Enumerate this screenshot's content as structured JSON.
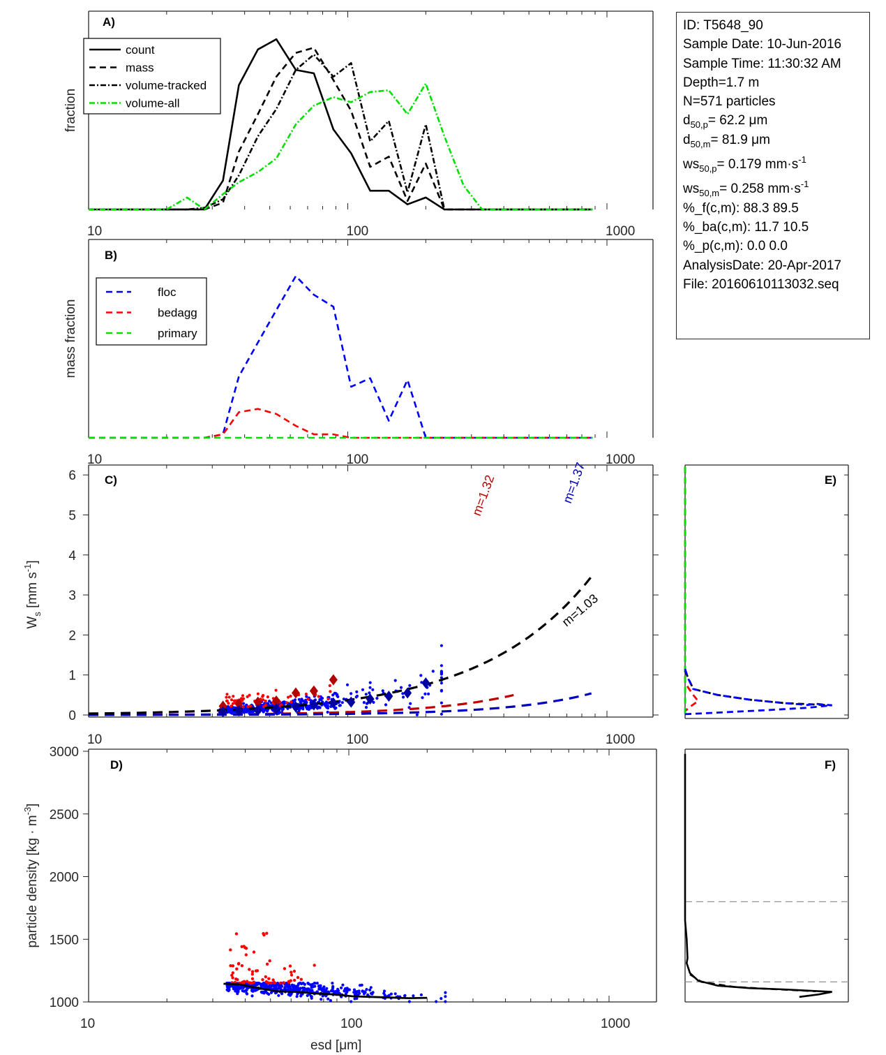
{
  "info_box": {
    "lines": [
      {
        "text": "ID: T5648_90"
      },
      {
        "text": "Sample Date: 10-Jun-2016"
      },
      {
        "text": "Sample Time: 11:30:32 AM"
      },
      {
        "text": "Depth=1.7 m"
      },
      {
        "text": "N=571 particles"
      },
      {
        "pre": "d",
        "sub": "50,p",
        "post": "=  62.2 μm"
      },
      {
        "pre": "d",
        "sub": "50,m",
        "post": "=  81.9 μm"
      },
      {
        "pre": "ws",
        "sub": "50,p",
        "post": "= 0.179 mm·s",
        "sup": "-1"
      },
      {
        "pre": "ws",
        "sub": "50,m",
        "post": "= 0.258 mm·s",
        "sup": "-1"
      },
      {
        "text": "%_f(c,m): 88.3 89.5"
      },
      {
        "text": "%_ba(c,m): 11.7 10.5"
      },
      {
        "text": "%_p(c,m): 0.0 0.0"
      },
      {
        "text": "AnalysisDate: 20-Apr-2017"
      },
      {
        "text": "File: 20160610113032.seq"
      }
    ]
  },
  "chart_data": [
    {
      "panel": "A)",
      "type": "line",
      "xscale": "log",
      "xlim": [
        10,
        1500
      ],
      "ylim": [
        0,
        1.05
      ],
      "ylabel": "fraction",
      "xticklabels": [
        "10",
        "100",
        "1000"
      ],
      "xticks": [
        10,
        100,
        1000
      ],
      "legend": {
        "placement": "top-left",
        "entries": [
          "count",
          "mass",
          "volume-tracked",
          "volume-all"
        ]
      },
      "series": [
        {
          "name": "count",
          "color": "#000000",
          "style": "solid",
          "x": [
            10,
            12,
            14,
            17,
            20,
            24,
            28,
            33,
            38,
            45,
            53,
            63,
            74,
            88,
            103,
            122,
            144,
            170,
            200,
            236,
            280,
            330,
            390,
            460,
            540,
            640,
            750,
            880
          ],
          "y": [
            0,
            0,
            0,
            0,
            0,
            0,
            0,
            0.17,
            0.73,
            0.94,
            1.0,
            0.82,
            0.8,
            0.47,
            0.33,
            0.11,
            0.11,
            0.03,
            0.07,
            0.0,
            0,
            0,
            0,
            0,
            0,
            0,
            0,
            0
          ]
        },
        {
          "name": "mass",
          "color": "#000000",
          "style": "dash",
          "x": [
            10,
            12,
            14,
            17,
            20,
            24,
            28,
            33,
            38,
            45,
            53,
            63,
            74,
            88,
            103,
            122,
            144,
            170,
            200,
            236,
            280,
            330,
            390,
            460,
            540,
            640,
            750,
            880
          ],
          "y": [
            0,
            0,
            0,
            0,
            0,
            0,
            0,
            0.04,
            0.34,
            0.56,
            0.78,
            0.92,
            0.95,
            0.76,
            0.58,
            0.25,
            0.31,
            0.05,
            0.27,
            0.0,
            0,
            0,
            0,
            0,
            0,
            0,
            0,
            0
          ]
        },
        {
          "name": "volume-tracked",
          "color": "#000000",
          "style": "dashdot",
          "x": [
            10,
            12,
            14,
            17,
            20,
            24,
            28,
            33,
            38,
            45,
            53,
            63,
            74,
            88,
            103,
            122,
            144,
            170,
            200,
            236,
            280,
            330,
            390,
            460,
            540,
            640,
            750,
            880
          ],
          "y": [
            0,
            0,
            0,
            0,
            0,
            0,
            0.01,
            0.06,
            0.2,
            0.43,
            0.59,
            0.82,
            0.91,
            0.78,
            0.86,
            0.4,
            0.52,
            0.1,
            0.5,
            0.0,
            0,
            0,
            0,
            0,
            0,
            0,
            0,
            0
          ]
        },
        {
          "name": "volume-all",
          "color": "#00e000",
          "style": "dashdot",
          "x": [
            10,
            12,
            14,
            17,
            20,
            24,
            28,
            33,
            38,
            45,
            53,
            63,
            74,
            88,
            103,
            122,
            144,
            170,
            200,
            236,
            280,
            330,
            390,
            460,
            540,
            640,
            750,
            880
          ],
          "y": [
            0,
            0,
            0,
            0,
            0,
            0.07,
            0.0,
            0.09,
            0.16,
            0.22,
            0.3,
            0.5,
            0.61,
            0.66,
            0.63,
            0.69,
            0.7,
            0.56,
            0.74,
            0.43,
            0.14,
            0,
            0,
            0,
            0,
            0,
            0,
            0
          ]
        }
      ]
    },
    {
      "panel": "B)",
      "type": "line",
      "xscale": "log",
      "xlim": [
        10,
        1500
      ],
      "ylim": [
        0,
        1.05
      ],
      "ylabel": "mass fraction",
      "xticklabels": [
        "10",
        "100",
        "1000"
      ],
      "xticks": [
        10,
        100,
        1000
      ],
      "legend": {
        "placement": "top-left",
        "entries": [
          "floc",
          "bedagg",
          "primary"
        ]
      },
      "series": [
        {
          "name": "floc",
          "color": "#0000ff",
          "style": "dash",
          "x": [
            10,
            12,
            14,
            17,
            20,
            24,
            28,
            33,
            38,
            45,
            53,
            63,
            74,
            88,
            103,
            122,
            144,
            170,
            200,
            236,
            280,
            330,
            390,
            460,
            540,
            640,
            750,
            880
          ],
          "y": [
            0,
            0,
            0,
            0,
            0,
            0,
            0,
            0.02,
            0.36,
            0.56,
            0.75,
            0.95,
            0.84,
            0.77,
            0.3,
            0.35,
            0.1,
            0.34,
            0.0,
            0,
            0,
            0,
            0,
            0,
            0,
            0,
            0,
            0
          ]
        },
        {
          "name": "bedagg",
          "color": "#ff0000",
          "style": "dash",
          "x": [
            10,
            12,
            14,
            17,
            20,
            24,
            28,
            33,
            38,
            45,
            53,
            63,
            74,
            88,
            103,
            122,
            144,
            170,
            200,
            236,
            280,
            330,
            390,
            460,
            540,
            640,
            750,
            880
          ],
          "y": [
            0,
            0,
            0,
            0,
            0,
            0,
            0,
            0.02,
            0.15,
            0.17,
            0.14,
            0.07,
            0.02,
            0.02,
            0,
            0,
            0,
            0,
            0,
            0,
            0,
            0,
            0,
            0,
            0,
            0,
            0,
            0
          ]
        },
        {
          "name": "primary",
          "color": "#00e000",
          "style": "dash",
          "x": [
            10,
            880
          ],
          "y": [
            0,
            0
          ]
        }
      ]
    },
    {
      "panel": "C)",
      "type": "scatter",
      "xscale": "log",
      "xlim": [
        10,
        1500
      ],
      "ylim": [
        -0.05,
        6.25
      ],
      "ylabel": "W_s [mm s^-1]",
      "yticks": [
        0,
        1,
        2,
        3,
        4,
        5,
        6
      ],
      "xticklabels": [
        "10",
        "100",
        "1000"
      ],
      "xticks": [
        10,
        100,
        1000
      ],
      "fits": [
        {
          "name": "bedagg-fit",
          "label": "m=1.32",
          "color": "#c00000",
          "exponent": 1.32,
          "coef": 0.000163,
          "xmax": 440
        },
        {
          "name": "floc-fit",
          "label": "m=1.37",
          "color": "#0000c0",
          "exponent": 1.37,
          "coef": 5.06e-05,
          "xmax": 880
        },
        {
          "name": "all-fit",
          "label": "m=1.03",
          "color": "#000000",
          "exponent": 1.03,
          "coef": 0.00324,
          "xmax": 880
        }
      ],
      "bin_means": [
        {
          "name": "bedagg-means",
          "color": "#b00000",
          "x": [
            33,
            38,
            45,
            53,
            63,
            74,
            88
          ],
          "y": [
            0.22,
            0.28,
            0.32,
            0.35,
            0.55,
            0.6,
            0.88
          ]
        },
        {
          "name": "floc-means",
          "color": "#0000a0",
          "x": [
            33,
            38,
            45,
            53,
            63,
            74,
            88,
            103,
            122,
            144,
            170,
            200
          ],
          "y": [
            0.08,
            0.1,
            0.12,
            0.15,
            0.2,
            0.25,
            0.3,
            0.32,
            0.4,
            0.47,
            0.55,
            0.8
          ]
        }
      ],
      "scatter_groups": [
        {
          "name": "floc-particles",
          "color": "#0000ff",
          "count": 505,
          "xrange": [
            32,
            230
          ],
          "note": "Ws values 0 to 1.2 mm/s, mostly 0.05-0.6"
        },
        {
          "name": "bedagg-particles",
          "color": "#ff0000",
          "count": 66,
          "xrange": [
            33,
            90
          ],
          "note": "Ws values 0.15 to 0.65 mm/s"
        }
      ]
    },
    {
      "panel": "D)",
      "type": "scatter",
      "xscale": "log",
      "xlim": [
        10,
        1500
      ],
      "ylim": [
        1000,
        3000
      ],
      "xlabel": "esd [μm]",
      "ylabel": "particle density [kg · m^-3]",
      "yticks": [
        1000,
        1500,
        2000,
        2500,
        3000
      ],
      "xticklabels": [
        "10",
        "100",
        "1000"
      ],
      "xticks": [
        10,
        100,
        1000
      ],
      "mean_line": {
        "name": "density-mean",
        "color": "#000000",
        "x": [
          33,
          38,
          45,
          53,
          63,
          74,
          88,
          103,
          122,
          144,
          170,
          200
        ],
        "y": [
          1145,
          1140,
          1110,
          1085,
          1080,
          1068,
          1060,
          1045,
          1040,
          1035,
          1030,
          1033
        ]
      },
      "scatter_groups": [
        {
          "name": "floc-particles",
          "color": "#0000ff",
          "count": 505,
          "xrange": [
            32,
            230
          ],
          "note": "density 1000-1150"
        },
        {
          "name": "bedagg-particles",
          "color": "#ff0000",
          "count": 66,
          "xrange": [
            34,
            90
          ],
          "note": "density 1150-1560"
        }
      ]
    },
    {
      "panel": "E)",
      "type": "line",
      "xlim": [
        0,
        1
      ],
      "ylim": [
        -0.05,
        6.25
      ],
      "series": [
        {
          "name": "bedagg-dist",
          "color": "#ff0000",
          "style": "dash",
          "x": [
            0,
            0,
            0,
            0.05,
            0.08,
            0.03,
            0.0
          ],
          "y": [
            6.2,
            1.0,
            0.8,
            0.5,
            0.35,
            0.2,
            0.1
          ]
        },
        {
          "name": "primary-dist",
          "color": "#00e000",
          "style": "dash",
          "x": [
            0,
            0
          ],
          "y": [
            6.2,
            0.0
          ]
        },
        {
          "name": "all-dist",
          "color": "#000000",
          "style": "dash",
          "x": [
            0.0,
            0.05,
            0.2,
            0.4,
            0.6,
            0.8,
            0.9
          ],
          "y": [
            1.1,
            0.65,
            0.5,
            0.38,
            0.3,
            0.26,
            0.24
          ]
        },
        {
          "name": "floc-dist",
          "color": "#0000ff",
          "style": "dash",
          "x": [
            0.0,
            0.02,
            0.05,
            0.2,
            0.4,
            0.6,
            0.75,
            0.8,
            0.9
          ],
          "y": [
            1.15,
            0.9,
            0.65,
            0.5,
            0.38,
            0.3,
            0.25,
            0.28,
            0.24
          ]
        },
        {
          "name": "floc-dist-lower",
          "color": "#0000ff",
          "style": "dash",
          "x": [
            0.0,
            0.2,
            0.5,
            0.75,
            0.9
          ],
          "y": [
            0.02,
            0.06,
            0.12,
            0.18,
            0.24
          ]
        }
      ]
    },
    {
      "panel": "F)",
      "type": "line",
      "xlim": [
        0,
        1
      ],
      "ylim": [
        1000,
        3000
      ],
      "reference_lines": [
        1800,
        1160
      ],
      "series": [
        {
          "name": "density-dist",
          "color": "#000000",
          "style": "solid",
          "x": [
            0.0,
            0.0,
            0.01,
            0.015,
            0.01,
            0.03,
            0.08,
            0.2,
            0.4,
            0.6,
            0.9,
            0.82,
            0.7
          ],
          "y": [
            2980,
            1650,
            1500,
            1350,
            1310,
            1230,
            1170,
            1130,
            1110,
            1100,
            1080,
            1060,
            1040
          ]
        },
        {
          "name": "density-dist-dashed",
          "color": "#000000",
          "style": "dash",
          "x": [
            0.03,
            0.1,
            0.3,
            0.5,
            0.8
          ],
          "y": [
            1220,
            1160,
            1120,
            1105,
            1085
          ]
        }
      ]
    }
  ]
}
